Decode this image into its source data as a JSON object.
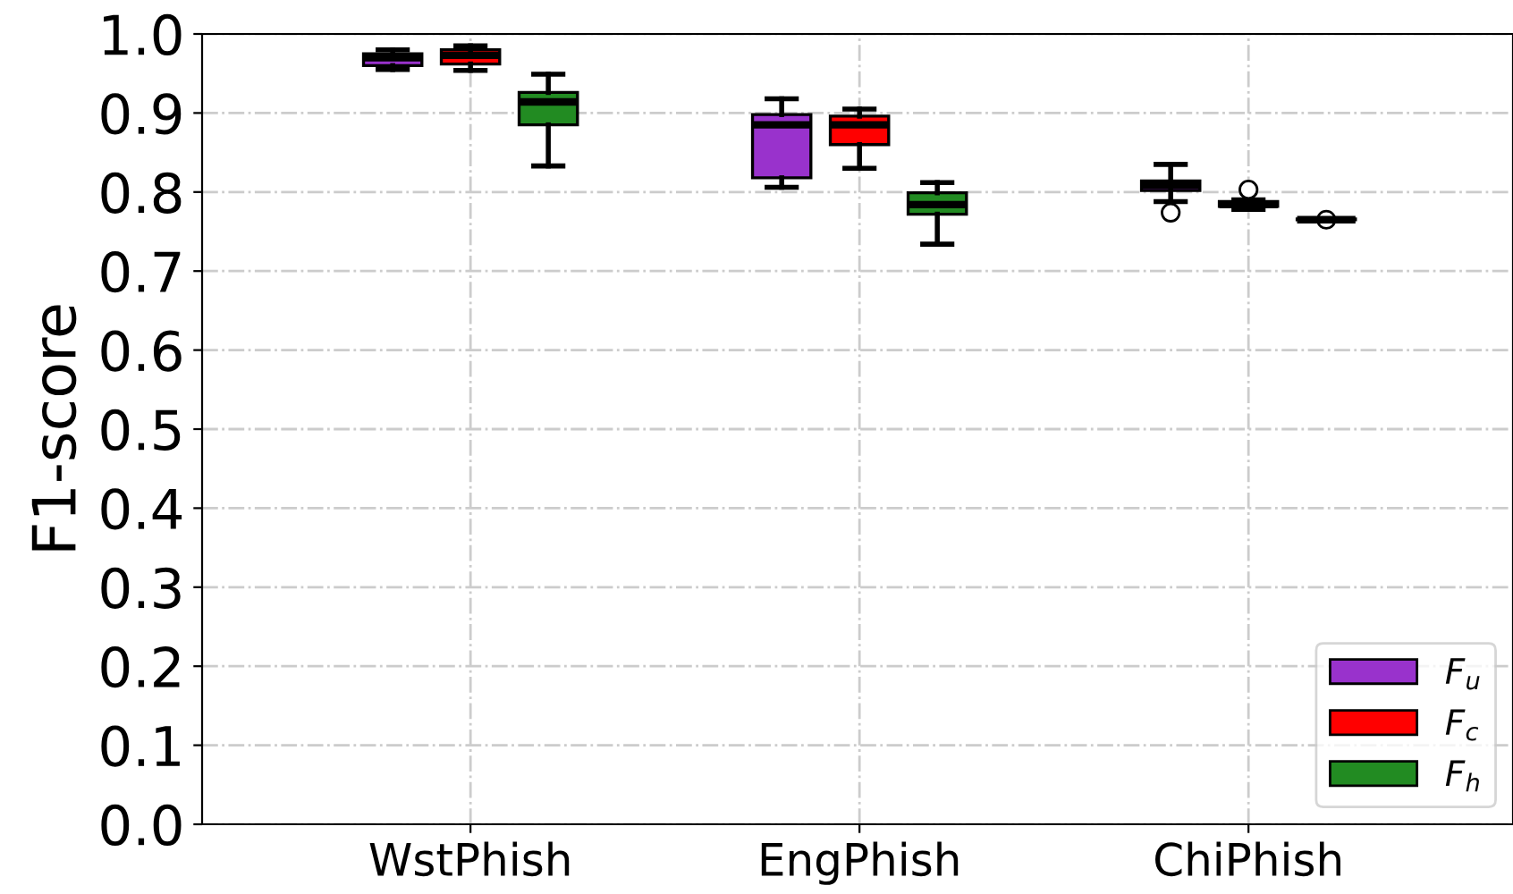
{
  "chart_data": {
    "type": "box",
    "ylabel": "F1-score",
    "categories": [
      "WstPhish",
      "EngPhish",
      "ChiPhish"
    ],
    "ylim": [
      0.0,
      1.0
    ],
    "yticks": [
      {
        "value": 0,
        "label": "0.0"
      },
      0.1,
      0.2,
      0.3,
      0.4,
      0.5,
      0.6,
      0.7,
      0.8,
      0.9,
      {
        "value": 1,
        "label": "1.0"
      }
    ],
    "grid": true,
    "legend": "bottom right",
    "series": [
      {
        "name": "F$_{u}$",
        "color": "#9932cc",
        "boxes": [
          {
            "low": 0.955,
            "q1": 0.96,
            "median": 0.97,
            "q3": 0.975,
            "high": 0.98
          },
          {
            "low": 0.806,
            "q1": 0.818,
            "median": 0.885,
            "q3": 0.898,
            "high": 0.918
          },
          {
            "low": 0.788,
            "q1": 0.802,
            "median": 0.809,
            "q3": 0.814,
            "high": 0.835,
            "outliers": [
              0.774
            ]
          }
        ]
      },
      {
        "name": "F$_{c}$",
        "color": "#ff0000",
        "boxes": [
          {
            "low": 0.954,
            "q1": 0.962,
            "median": 0.973,
            "q3": 0.98,
            "high": 0.985
          },
          {
            "low": 0.83,
            "q1": 0.86,
            "median": 0.885,
            "q3": 0.896,
            "high": 0.905
          },
          {
            "low": 0.778,
            "q1": 0.782,
            "median": 0.784,
            "q3": 0.788,
            "high": 0.79,
            "outliers": [
              0.803
            ]
          }
        ]
      },
      {
        "name": "F$_{h}$",
        "color": "#228b22",
        "boxes": [
          {
            "low": 0.833,
            "q1": 0.885,
            "median": 0.914,
            "q3": 0.926,
            "high": 0.949
          },
          {
            "low": 0.734,
            "q1": 0.772,
            "median": 0.784,
            "q3": 0.799,
            "high": 0.812
          },
          {
            "low": 0.764,
            "q1": 0.765,
            "median": 0.765,
            "q3": 0.766,
            "high": 0.766,
            "outliers": [
              0.765
            ]
          }
        ]
      }
    ]
  }
}
